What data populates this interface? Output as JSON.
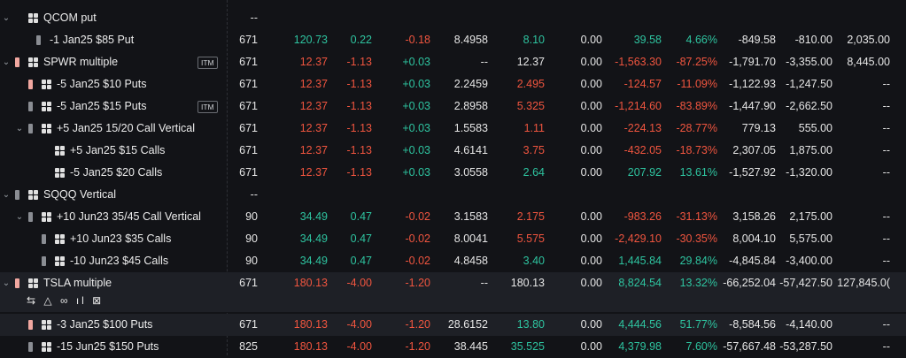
{
  "columns_order": [
    "qty",
    "last",
    "chg",
    "chg2",
    "cost",
    "mark",
    "z",
    "pl",
    "plpct",
    "a",
    "b",
    "c"
  ],
  "rows": [
    {
      "name": "QCOM put",
      "chev": "v",
      "bar": "",
      "grid": true,
      "badge": "",
      "qty": "--",
      "last": "",
      "chg": "",
      "chg2": "",
      "cost": "",
      "mark": "",
      "z": "",
      "pl": "",
      "plpct": "",
      "a": "",
      "b": "",
      "c": ""
    },
    {
      "name": "-1 Jan25 $85 Put",
      "chev": "",
      "bar": "grey",
      "grid": false,
      "badge": "",
      "qty": "671",
      "last": "120.73",
      "chg": "0.22",
      "chg2": "-0.18",
      "cost": "8.4958",
      "mark": "8.10",
      "z": "0.00",
      "pl": "39.58",
      "plpct": "4.66%",
      "a": "-849.58",
      "b": "-810.00",
      "c": "2,035.00"
    },
    {
      "name": "SPWR multiple",
      "chev": "v",
      "bar": "pink",
      "grid": true,
      "badge": "ITM",
      "qty": "671",
      "last": "12.37",
      "chg": "-1.13",
      "chg2": "+0.03",
      "cost": "--",
      "mark": "12.37",
      "z": "0.00",
      "pl": "-1,563.30",
      "plpct": "-87.25%",
      "a": "-1,791.70",
      "b": "-3,355.00",
      "c": "8,445.00"
    },
    {
      "name": "-5 Jan25 $10 Puts",
      "chev": "",
      "bar": "pink",
      "grid": true,
      "badge": "",
      "qty": "671",
      "last": "12.37",
      "chg": "-1.13",
      "chg2": "+0.03",
      "cost": "2.2459",
      "mark": "2.495",
      "z": "0.00",
      "pl": "-124.57",
      "plpct": "-11.09%",
      "a": "-1,122.93",
      "b": "-1,247.50",
      "c": "--"
    },
    {
      "name": "-5 Jan25 $15 Puts",
      "chev": "",
      "bar": "grey",
      "grid": true,
      "badge": "ITM",
      "qty": "671",
      "last": "12.37",
      "chg": "-1.13",
      "chg2": "+0.03",
      "cost": "2.8958",
      "mark": "5.325",
      "z": "0.00",
      "pl": "-1,214.60",
      "plpct": "-83.89%",
      "a": "-1,447.90",
      "b": "-2,662.50",
      "c": "--"
    },
    {
      "name": "+5 Jan25 15/20 Call Vertical",
      "chev": "v",
      "bar": "grey",
      "grid": true,
      "badge": "",
      "qty": "671",
      "last": "12.37",
      "chg": "-1.13",
      "chg2": "+0.03",
      "cost": "1.5583",
      "mark": "1.11",
      "z": "0.00",
      "pl": "-224.13",
      "plpct": "-28.77%",
      "a": "779.13",
      "b": "555.00",
      "c": "--"
    },
    {
      "name": "+5 Jan25 $15 Calls",
      "chev": "",
      "bar": "",
      "grid": true,
      "badge": "",
      "qty": "671",
      "last": "12.37",
      "chg": "-1.13",
      "chg2": "+0.03",
      "cost": "4.6141",
      "mark": "3.75",
      "z": "0.00",
      "pl": "-432.05",
      "plpct": "-18.73%",
      "a": "2,307.05",
      "b": "1,875.00",
      "c": "--"
    },
    {
      "name": "-5 Jan25 $20 Calls",
      "chev": "",
      "bar": "",
      "grid": true,
      "badge": "",
      "qty": "671",
      "last": "12.37",
      "chg": "-1.13",
      "chg2": "+0.03",
      "cost": "3.0558",
      "mark": "2.64",
      "z": "0.00",
      "pl": "207.92",
      "plpct": "13.61%",
      "a": "-1,527.92",
      "b": "-1,320.00",
      "c": "--"
    },
    {
      "name": "SQQQ Vertical",
      "chev": "v",
      "bar": "grey",
      "grid": true,
      "badge": "",
      "qty": "--",
      "last": "",
      "chg": "",
      "chg2": "",
      "cost": "",
      "mark": "",
      "z": "",
      "pl": "",
      "plpct": "",
      "a": "",
      "b": "",
      "c": ""
    },
    {
      "name": "+10 Jun23 35/45 Call Vertical",
      "chev": "v",
      "bar": "grey",
      "grid": true,
      "badge": "",
      "qty": "90",
      "last": "34.49",
      "chg": "0.47",
      "chg2": "-0.02",
      "cost": "3.1583",
      "mark": "2.175",
      "z": "0.00",
      "pl": "-983.26",
      "plpct": "-31.13%",
      "a": "3,158.26",
      "b": "2,175.00",
      "c": "--"
    },
    {
      "name": "+10 Jun23 $35 Calls",
      "chev": "",
      "bar": "grey",
      "grid": true,
      "badge": "",
      "qty": "90",
      "last": "34.49",
      "chg": "0.47",
      "chg2": "-0.02",
      "cost": "8.0041",
      "mark": "5.575",
      "z": "0.00",
      "pl": "-2,429.10",
      "plpct": "-30.35%",
      "a": "8,004.10",
      "b": "5,575.00",
      "c": "--"
    },
    {
      "name": "-10 Jun23 $45 Calls",
      "chev": "",
      "bar": "grey",
      "grid": true,
      "badge": "",
      "qty": "90",
      "last": "34.49",
      "chg": "0.47",
      "chg2": "-0.02",
      "cost": "4.8458",
      "mark": "3.40",
      "z": "0.00",
      "pl": "1,445.84",
      "plpct": "29.84%",
      "a": "-4,845.84",
      "b": "-3,400.00",
      "c": "--"
    },
    {
      "name": "TSLA multiple",
      "chev": "v",
      "bar": "pink",
      "grid": true,
      "badge": "",
      "qty": "671",
      "last": "180.13",
      "chg": "-4.00",
      "chg2": "-1.20",
      "cost": "--",
      "mark": "180.13",
      "z": "0.00",
      "pl": "8,824.54",
      "plpct": "13.32%",
      "a": "-66,252.04",
      "b": "-57,427.50",
      "c": "127,845.0("
    },
    {
      "name": "-3 Jan25 $100 Puts",
      "chev": "",
      "bar": "pink",
      "grid": true,
      "badge": "",
      "qty": "671",
      "last": "180.13",
      "chg": "-4.00",
      "chg2": "-1.20",
      "cost": "28.6152",
      "mark": "13.80",
      "z": "0.00",
      "pl": "4,444.56",
      "plpct": "51.77%",
      "a": "-8,584.56",
      "b": "-4,140.00",
      "c": "--"
    },
    {
      "name": "-15 Jun25 $150 Puts",
      "chev": "",
      "bar": "grey",
      "grid": true,
      "badge": "",
      "qty": "825",
      "last": "180.13",
      "chg": "-4.00",
      "chg2": "-1.20",
      "cost": "38.445",
      "mark": "35.525",
      "z": "0.00",
      "pl": "4,379.98",
      "plpct": "7.60%",
      "a": "-57,667.48",
      "b": "-53,287.50",
      "c": "--"
    }
  ],
  "tsla_icons": "⇆ △ ∞ ıl ⊠",
  "colors": {
    "green": "#2ec4a0",
    "red": "#f0553f"
  }
}
